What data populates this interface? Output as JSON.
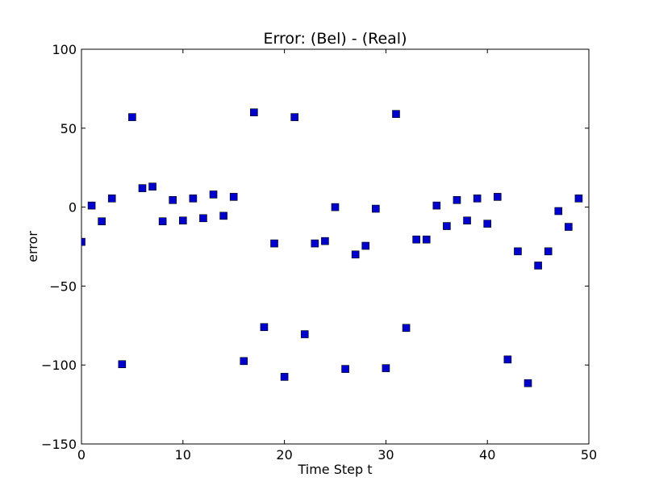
{
  "chart_data": {
    "type": "scatter",
    "title": "Error: (Bel) - (Real)",
    "xlabel": "Time Step t",
    "ylabel": "error",
    "xlim": [
      0,
      50
    ],
    "ylim": [
      -150,
      100
    ],
    "xticks": [
      0,
      10,
      20,
      30,
      40,
      50
    ],
    "yticks": [
      -150,
      -100,
      -50,
      0,
      50,
      100
    ],
    "xtick_labels": [
      "0",
      "10",
      "20",
      "30",
      "40",
      "50"
    ],
    "ytick_labels": [
      "−150",
      "−100",
      "−50",
      "0",
      "50",
      "100"
    ],
    "grid": false,
    "marker": "square",
    "color": "#0000cc",
    "x": [
      0,
      1,
      2,
      3,
      4,
      5,
      6,
      7,
      8,
      9,
      10,
      11,
      12,
      13,
      14,
      15,
      16,
      17,
      18,
      19,
      20,
      21,
      22,
      23,
      24,
      25,
      26,
      27,
      28,
      29,
      30,
      31,
      32,
      33,
      34,
      35,
      36,
      37,
      38,
      39,
      40,
      41,
      42,
      43,
      44,
      45,
      46,
      47,
      48,
      49
    ],
    "y": [
      -22,
      1,
      -9,
      5.5,
      -99.5,
      57,
      12,
      13,
      -9,
      4.5,
      -8.5,
      5.5,
      -7,
      8,
      -5.5,
      6.5,
      -97.5,
      60,
      -76,
      -23,
      -107.5,
      57,
      -80.5,
      -23,
      -21.5,
      0,
      -102.5,
      -30,
      -24.5,
      -1,
      -102,
      59,
      -76.5,
      -20.5,
      -20.5,
      1,
      -12,
      4.5,
      -8.5,
      5.5,
      -10.5,
      6.5,
      -96.5,
      -28,
      -111.5,
      -37,
      -28,
      -2.5,
      -12.5,
      5.5
    ]
  }
}
